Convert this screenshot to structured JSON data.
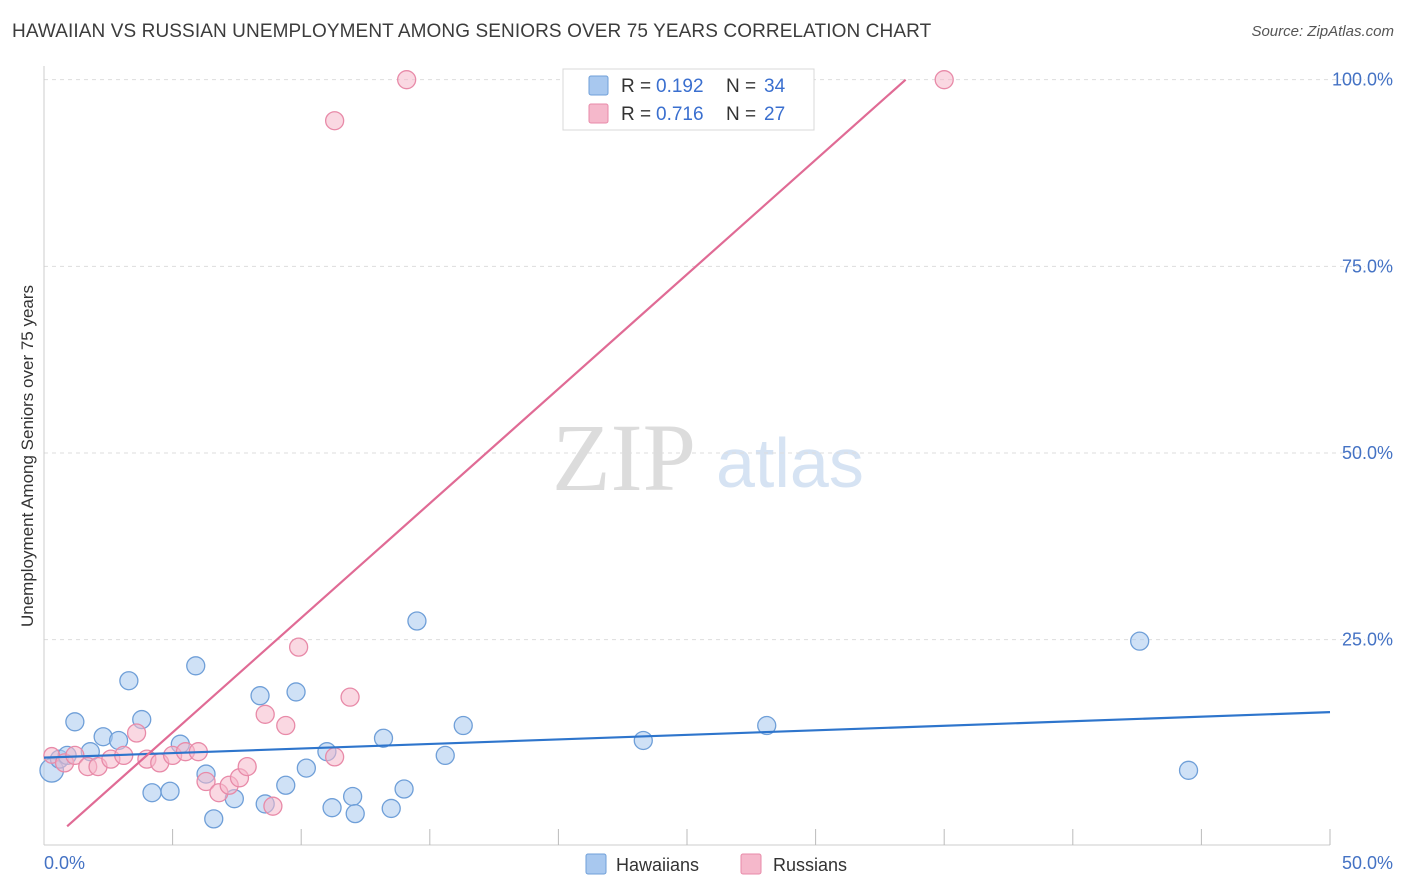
{
  "title": "HAWAIIAN VS RUSSIAN UNEMPLOYMENT AMONG SENIORS OVER 75 YEARS CORRELATION CHART",
  "source": "Source: ZipAtlas.com",
  "watermark": {
    "zip": "ZIP",
    "atlas": "atlas"
  },
  "colors": {
    "hawaiians_fill": "#a8c8ef",
    "hawaiians_stroke": "#6f9fd8",
    "hawaiians_line": "#2e75cc",
    "russians_fill": "#f5b8cb",
    "russians_stroke": "#e88aa8",
    "russians_line": "#e06b95",
    "tick_label": "#4472c4",
    "grid": "#dddddd"
  },
  "legend": {
    "rows": [
      {
        "r_label": "R =",
        "r_value": "0.192",
        "n_label": "N =",
        "n_value": "34"
      },
      {
        "r_label": "R =",
        "r_value": "0.716",
        "n_label": "N =",
        "n_value": "27"
      }
    ]
  },
  "chart_data": {
    "type": "scatter",
    "title": "HAWAIIAN VS RUSSIAN UNEMPLOYMENT AMONG SENIORS OVER 75 YEARS CORRELATION CHART",
    "xlabel": "",
    "ylabel": "Unemployment Among Seniors over 75 years",
    "xlim": [
      0,
      50
    ],
    "ylim": [
      -2.5,
      102.5
    ],
    "x_tick_labels": [
      "0.0%",
      "50.0%"
    ],
    "y_ticks": [
      25,
      50,
      75,
      100
    ],
    "y_tick_labels": [
      "25.0%",
      "50.0%",
      "75.0%",
      "100.0%"
    ],
    "x_minor_ticks": [
      5,
      10,
      15,
      20,
      25,
      30,
      35,
      40,
      45,
      50
    ],
    "grid": true,
    "series": [
      {
        "name": "Hawaiians",
        "r": 0.192,
        "n": 34,
        "points": [
          [
            0.3,
            7.5,
            3
          ],
          [
            0.6,
            9.0,
            1
          ],
          [
            0.9,
            9.5,
            1
          ],
          [
            1.2,
            14.0,
            1
          ],
          [
            1.8,
            10.0,
            1
          ],
          [
            2.3,
            12.0,
            1
          ],
          [
            2.9,
            11.5,
            1
          ],
          [
            3.3,
            19.5,
            1
          ],
          [
            3.8,
            14.3,
            1
          ],
          [
            4.2,
            4.5,
            1
          ],
          [
            4.9,
            4.7,
            1
          ],
          [
            5.3,
            11.0,
            1
          ],
          [
            5.9,
            21.5,
            1
          ],
          [
            6.3,
            7.0,
            1
          ],
          [
            6.6,
            1.0,
            1
          ],
          [
            7.4,
            3.7,
            1
          ],
          [
            8.4,
            17.5,
            1
          ],
          [
            8.6,
            3.0,
            1
          ],
          [
            9.4,
            5.5,
            1
          ],
          [
            9.8,
            18.0,
            1
          ],
          [
            10.2,
            7.8,
            1
          ],
          [
            11.0,
            10.0,
            1
          ],
          [
            11.2,
            2.5,
            1
          ],
          [
            12.0,
            4.0,
            1
          ],
          [
            12.1,
            1.7,
            1
          ],
          [
            13.2,
            11.8,
            1
          ],
          [
            13.5,
            2.4,
            1
          ],
          [
            14.0,
            5.0,
            1
          ],
          [
            14.5,
            27.5,
            1
          ],
          [
            15.6,
            9.5,
            1
          ],
          [
            16.3,
            13.5,
            1
          ],
          [
            23.3,
            11.5,
            1
          ],
          [
            28.1,
            13.5,
            1
          ],
          [
            42.6,
            24.8,
            1
          ],
          [
            44.5,
            7.5,
            1
          ]
        ]
      },
      {
        "name": "Russians",
        "r": 0.716,
        "n": 27,
        "points": [
          [
            0.3,
            9.5,
            2
          ],
          [
            0.8,
            8.5,
            1
          ],
          [
            1.2,
            9.5,
            1
          ],
          [
            1.7,
            8.0,
            1
          ],
          [
            2.1,
            8.0,
            1
          ],
          [
            2.6,
            9.0,
            1
          ],
          [
            3.1,
            9.5,
            1
          ],
          [
            3.6,
            12.5,
            1
          ],
          [
            4.0,
            9.0,
            1
          ],
          [
            4.5,
            8.5,
            1
          ],
          [
            5.0,
            9.5,
            1
          ],
          [
            5.5,
            10.0,
            1
          ],
          [
            6.0,
            10.0,
            1
          ],
          [
            6.3,
            6.0,
            1
          ],
          [
            6.8,
            4.5,
            1
          ],
          [
            7.2,
            5.5,
            1
          ],
          [
            7.6,
            6.5,
            1
          ],
          [
            7.9,
            8.0,
            1
          ],
          [
            8.6,
            15.0,
            1
          ],
          [
            8.9,
            2.7,
            1
          ],
          [
            9.4,
            13.5,
            1
          ],
          [
            9.9,
            24.0,
            1
          ],
          [
            11.3,
            9.3,
            1
          ],
          [
            11.9,
            17.3,
            1
          ],
          [
            11.3,
            94.5,
            1
          ],
          [
            14.1,
            100.0,
            1
          ],
          [
            35.0,
            100.0,
            1
          ]
        ]
      }
    ],
    "trendlines": [
      {
        "series": "Hawaiians",
        "x": [
          0,
          50
        ],
        "y": [
          9.2,
          15.3
        ]
      },
      {
        "series": "Russians",
        "x": [
          0.9,
          33.5
        ],
        "y": [
          0,
          100
        ]
      }
    ]
  },
  "bottom_legend": [
    {
      "label": "Hawaiians"
    },
    {
      "label": "Russians"
    }
  ]
}
